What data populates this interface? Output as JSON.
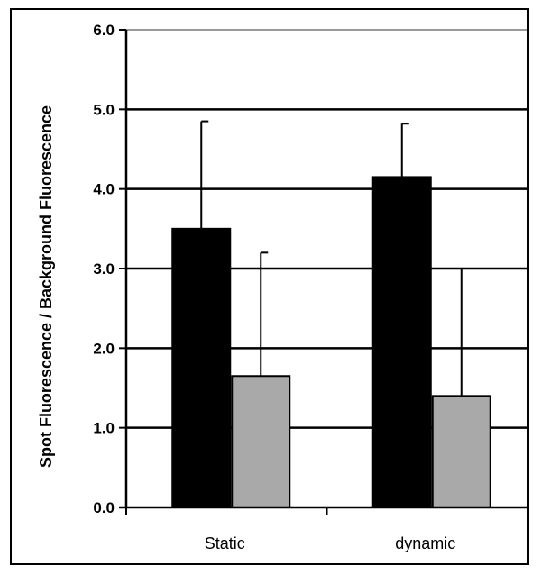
{
  "chart_data": {
    "type": "bar",
    "title": "",
    "xlabel": "",
    "ylabel": "Spot Fluorescence / Background Fluorescence",
    "categories": [
      "Static",
      "dynamic"
    ],
    "series": [
      {
        "color": "#000000",
        "values": [
          3.5,
          4.15
        ],
        "error": [
          1.35,
          0.67
        ]
      },
      {
        "color": "#a9a9a9",
        "values": [
          1.65,
          1.4
        ],
        "error": [
          1.55,
          1.6
        ]
      }
    ],
    "ylim": [
      0,
      6
    ],
    "yticks": [
      "0.0",
      "1.0",
      "2.0",
      "3.0",
      "4.0",
      "5.0",
      "6.0"
    ],
    "grid": true,
    "legend": "none"
  }
}
